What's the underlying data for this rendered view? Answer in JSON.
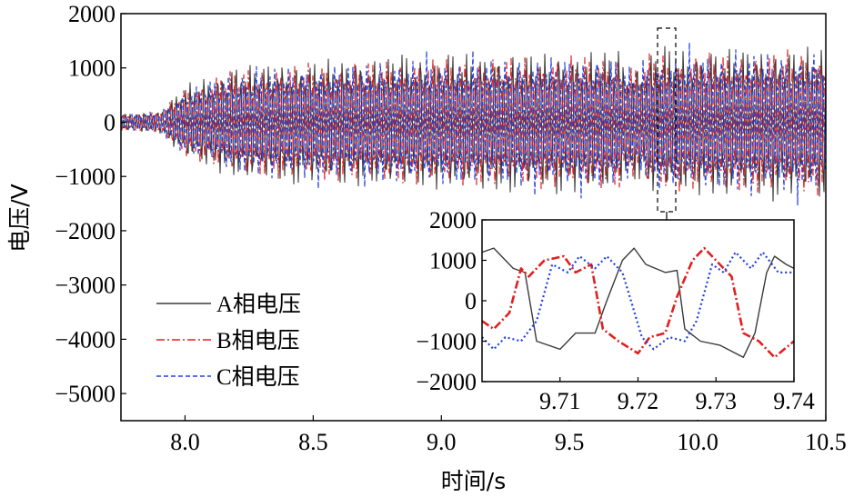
{
  "chart_data": [
    {
      "type": "line",
      "xlabel": "时间/s",
      "ylabel": "电压/V",
      "xlim": [
        7.75,
        10.5
      ],
      "ylim": [
        -5500,
        2000
      ],
      "xticks": [
        "8.0",
        "8.5",
        "9.0",
        "9.5",
        "10.0",
        "10.5"
      ],
      "yticks": [
        "2000",
        "1000",
        "0",
        "−1000",
        "−2000",
        "−3000",
        "−4000",
        "−5000"
      ],
      "legend_position": "lower-left",
      "series": [
        {
          "name": "A相电压",
          "color": "#3a3a3a",
          "style": "solid",
          "x": [
            7.75,
            7.9,
            8.0,
            8.2,
            8.5,
            9.0,
            9.5,
            10.0,
            10.5
          ],
          "envelope": [
            150,
            200,
            700,
            1050,
            1150,
            1250,
            1300,
            1350,
            1400
          ]
        },
        {
          "name": "B相电压",
          "color": "#e02020",
          "style": "dash-dot",
          "x": [
            7.75,
            7.9,
            8.0,
            8.2,
            8.5,
            9.0,
            9.5,
            10.0,
            10.5
          ],
          "envelope": [
            150,
            200,
            650,
            1000,
            1100,
            1200,
            1250,
            1300,
            1350
          ]
        },
        {
          "name": "C相电压",
          "color": "#2040e0",
          "style": "dashed",
          "x": [
            7.75,
            7.9,
            8.0,
            8.2,
            8.5,
            9.0,
            9.5,
            10.0,
            10.5
          ],
          "envelope": [
            150,
            200,
            600,
            950,
            1050,
            1150,
            1200,
            1250,
            1300
          ]
        }
      ]
    },
    {
      "type": "line",
      "title": "",
      "xlim": [
        9.7,
        9.74
      ],
      "ylim": [
        -2000,
        2000
      ],
      "xticks": [
        "9.71",
        "9.72",
        "9.73",
        "9.74"
      ],
      "yticks": [
        "2000",
        "1000",
        "0",
        "−1000",
        "−2000"
      ],
      "series": [
        {
          "name": "A相电压",
          "color": "#3a3a3a",
          "style": "solid",
          "x": [
            9.7,
            9.7015,
            9.704,
            9.7055,
            9.707,
            9.71,
            9.712,
            9.7145,
            9.716,
            9.718,
            9.7195,
            9.721,
            9.7235,
            9.725,
            9.726,
            9.728,
            9.7305,
            9.7335,
            9.735,
            9.7365,
            9.7375,
            9.739,
            9.74
          ],
          "y": [
            1200,
            1300,
            800,
            700,
            -1000,
            -1200,
            -800,
            -800,
            0,
            1000,
            1300,
            900,
            700,
            750,
            -700,
            -1000,
            -1100,
            -1400,
            -800,
            700,
            1100,
            900,
            800
          ]
        },
        {
          "name": "B相电压",
          "color": "#e02020",
          "style": "dash-dot",
          "x": [
            9.7,
            9.7015,
            9.7035,
            9.705,
            9.706,
            9.708,
            9.7105,
            9.712,
            9.714,
            9.7155,
            9.7175,
            9.72,
            9.7215,
            9.7235,
            9.725,
            9.727,
            9.7285,
            9.7305,
            9.732,
            9.7335,
            9.7355,
            9.7375,
            9.74
          ],
          "y": [
            -500,
            -700,
            -300,
            800,
            600,
            1000,
            1100,
            700,
            900,
            -700,
            -1000,
            -1300,
            -900,
            -800,
            100,
            1000,
            1300,
            900,
            600,
            -800,
            -1000,
            -1400,
            -1000
          ]
        },
        {
          "name": "C相电压",
          "color": "#2040e0",
          "style": "dashed",
          "x": [
            9.7,
            9.7015,
            9.703,
            9.705,
            9.707,
            9.709,
            9.711,
            9.7125,
            9.7145,
            9.716,
            9.718,
            9.7205,
            9.722,
            9.724,
            9.726,
            9.7275,
            9.7295,
            9.731,
            9.7325,
            9.7345,
            9.736,
            9.738,
            9.74
          ],
          "y": [
            -900,
            -1200,
            -900,
            -1000,
            -500,
            900,
            700,
            1100,
            800,
            1100,
            700,
            -900,
            -1200,
            -900,
            -1000,
            -500,
            900,
            700,
            1200,
            800,
            1200,
            700,
            700
          ]
        }
      ]
    }
  ]
}
